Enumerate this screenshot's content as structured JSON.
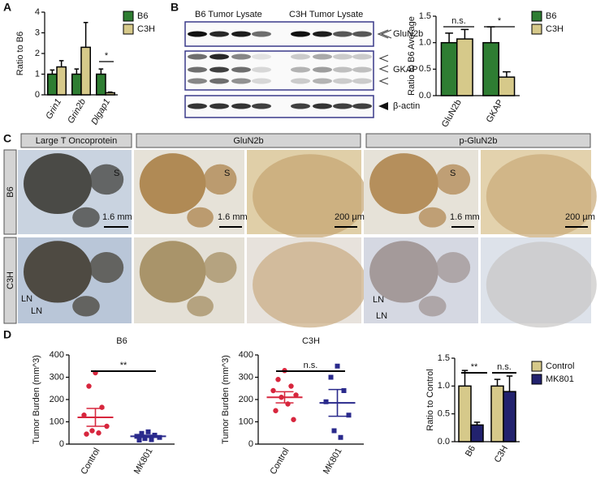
{
  "panels": [
    "A",
    "B",
    "C",
    "D"
  ],
  "chart_data": [
    {
      "type": "bar",
      "ylabel": "Ratio to B6",
      "categories": [
        "Grin1",
        "Grin2b",
        "Dlgap1"
      ],
      "series": [
        {
          "name": "B6",
          "color": "#2e7d32",
          "values": [
            1.0,
            1.0,
            1.0
          ],
          "errors": [
            0.2,
            0.25,
            0.25
          ]
        },
        {
          "name": "C3H",
          "color": "#d6c98a",
          "values": [
            1.35,
            2.3,
            0.1
          ],
          "errors": [
            0.3,
            1.2,
            0.03
          ]
        }
      ],
      "ylim": [
        0,
        4
      ],
      "yticks": [
        0,
        1,
        2,
        3,
        4
      ],
      "italic_categories": true,
      "annotations": [
        "*"
      ]
    },
    {
      "type": "bar",
      "ylabel": "Ratio to B6 Average",
      "categories": [
        "GluN2b",
        "GKAP"
      ],
      "series": [
        {
          "name": "B6",
          "color": "#2e7d32",
          "values": [
            1.0,
            1.0
          ],
          "errors": [
            0.18,
            0.3
          ]
        },
        {
          "name": "C3H",
          "color": "#d6c98a",
          "values": [
            1.07,
            0.35
          ],
          "errors": [
            0.18,
            0.1
          ]
        }
      ],
      "ylim": [
        0,
        1.5
      ],
      "yticks": [
        {
          "value": 0,
          "label": "0.0"
        },
        0.5,
        {
          "value": 1,
          "label": "1.0"
        },
        1.5
      ],
      "annotations": [
        "n.s.",
        "*"
      ]
    },
    {
      "type": "scatter",
      "title": "B6",
      "ylabel": "Tumor Burden (mm^3)",
      "categories": [
        "Control",
        "MK801"
      ],
      "groups": [
        {
          "color": "#d7263d",
          "marker": "circle",
          "values": [
            320,
            260,
            165,
            130,
            80,
            60,
            50,
            45
          ],
          "mean": 120,
          "sem": 40
        },
        {
          "color": "#2a2a8c",
          "marker": "square",
          "values": [
            55,
            48,
            40,
            35,
            30,
            25,
            20,
            18
          ],
          "mean": 35,
          "sem": 5
        }
      ],
      "ylim": [
        0,
        400
      ],
      "yticks": [
        0,
        100,
        200,
        300,
        400
      ],
      "annotations": [
        "**"
      ]
    },
    {
      "type": "scatter",
      "title": "C3H",
      "ylabel": "Tumor Burden (mm^3)",
      "categories": [
        "Control",
        "MK801"
      ],
      "groups": [
        {
          "color": "#d7263d",
          "marker": "circle",
          "values": [
            330,
            290,
            260,
            240,
            220,
            210,
            180,
            150,
            110
          ],
          "mean": 210,
          "sem": 25
        },
        {
          "color": "#2a2a8c",
          "marker": "square",
          "values": [
            350,
            300,
            240,
            190,
            130,
            60,
            30
          ],
          "mean": 185,
          "sem": 60
        }
      ],
      "ylim": [
        0,
        400
      ],
      "yticks": [
        0,
        100,
        200,
        300,
        400
      ],
      "annotations": [
        "n.s."
      ]
    },
    {
      "type": "bar",
      "ylabel": "Ratio to Control",
      "categories": [
        "B6",
        "C3H"
      ],
      "series": [
        {
          "name": "Control",
          "color": "#d6c98a",
          "values": [
            1.0,
            1.0
          ],
          "errors": [
            0.28,
            0.12
          ]
        },
        {
          "name": "MK801",
          "color": "#22226e",
          "values": [
            0.3,
            0.9
          ],
          "errors": [
            0.05,
            0.28
          ]
        }
      ],
      "ylim": [
        0,
        1.5
      ],
      "yticks": [
        {
          "value": 0,
          "label": "0.0"
        },
        0.5,
        {
          "value": 1,
          "label": "1.0"
        },
        1.5
      ],
      "annotations": [
        "**",
        "n.s."
      ]
    }
  ],
  "blot": {
    "lanes": [
      "B6 Tumor Lysate",
      "C3H Tumor Lysate"
    ],
    "bands": [
      "GluN2b",
      "GKAP",
      "β-actin"
    ]
  },
  "histology": {
    "columns": [
      "Large T Oncoprotein",
      "GluN2b",
      "p-GluN2b"
    ],
    "rows": [
      "B6",
      "C3H"
    ],
    "scale_bars": [
      "1.6 mm",
      "200 µm"
    ],
    "markers": [
      "S",
      "LN"
    ]
  }
}
